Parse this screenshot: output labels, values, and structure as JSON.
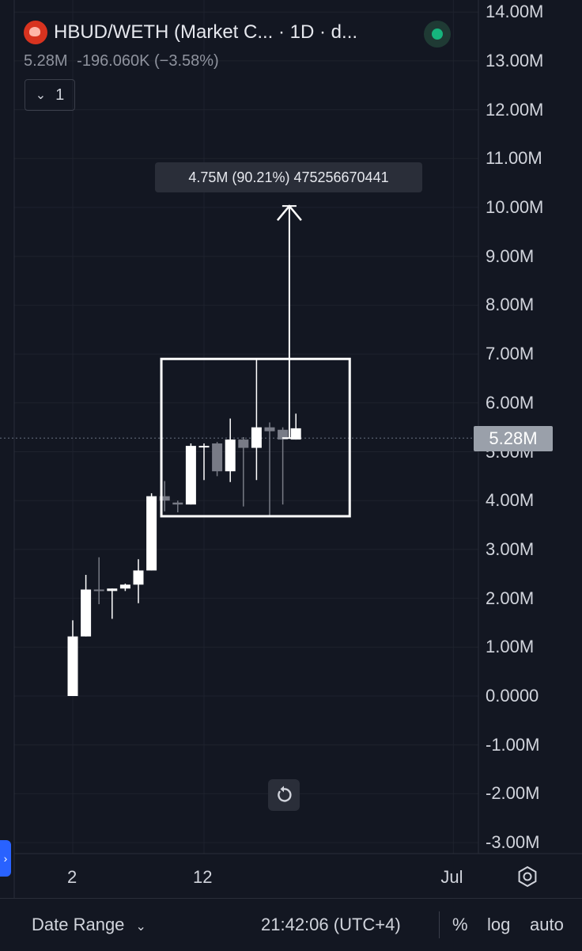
{
  "header": {
    "title": "HBUD/WETH (Market C...  · 1D · d...",
    "value": "5.28M",
    "change": "-196.060K (−3.58%)",
    "indicator_count": "1"
  },
  "measure_tooltip": "4.75M (90.21%) 475256670441",
  "last_price_label": "5.28M",
  "colors": {
    "background": "#131722",
    "candle_up": "#ffffff",
    "candle_down": "#787b86",
    "live_dot": "#16b47d",
    "side_tab": "#2962ff"
  },
  "chart_data": {
    "type": "candlestick",
    "interval": "1D",
    "y_axis": {
      "min": -3000000,
      "max": 14000000,
      "ticks": [
        14000000,
        13000000,
        12000000,
        11000000,
        10000000,
        9000000,
        8000000,
        7000000,
        6000000,
        5000000,
        4000000,
        3000000,
        2000000,
        1000000,
        0,
        -1000000,
        -2000000,
        -3000000
      ],
      "tick_labels": [
        "14.00M",
        "13.00M",
        "12.00M",
        "11.00M",
        "10.00M",
        "9.00M",
        "8.00M",
        "7.00M",
        "6.00M",
        "5.00M",
        "4.00M",
        "3.00M",
        "2.00M",
        "1.00M",
        "0.0000",
        "-1.00M",
        "-2.00M",
        "-3.00M"
      ]
    },
    "x_axis": {
      "tick_labels": [
        "2",
        "12",
        "Jul"
      ],
      "tick_days": [
        2,
        12,
        31
      ]
    },
    "candles": [
      {
        "day": 2,
        "open": 0,
        "high": 1550000,
        "low": 0,
        "close": 1220000
      },
      {
        "day": 3,
        "open": 1220000,
        "high": 2480000,
        "low": 1220000,
        "close": 2180000
      },
      {
        "day": 4,
        "open": 2180000,
        "high": 2840000,
        "low": 1880000,
        "close": 2150000
      },
      {
        "day": 5,
        "open": 2150000,
        "high": 2200000,
        "low": 1580000,
        "close": 2200000
      },
      {
        "day": 6,
        "open": 2200000,
        "high": 2300000,
        "low": 2150000,
        "close": 2280000
      },
      {
        "day": 7,
        "open": 2280000,
        "high": 2800000,
        "low": 1900000,
        "close": 2570000
      },
      {
        "day": 8,
        "open": 2570000,
        "high": 4150000,
        "low": 2570000,
        "close": 4090000
      },
      {
        "day": 9,
        "open": 4090000,
        "high": 4400000,
        "low": 3780000,
        "close": 4000000
      },
      {
        "day": 10,
        "open": 3960000,
        "high": 4000000,
        "low": 3760000,
        "close": 3920000
      },
      {
        "day": 11,
        "open": 3920000,
        "high": 5170000,
        "low": 3920000,
        "close": 5120000
      },
      {
        "day": 12,
        "open": 5120000,
        "high": 5170000,
        "low": 4420000,
        "close": 5120000
      },
      {
        "day": 13,
        "open": 5170000,
        "high": 5200000,
        "low": 4500000,
        "close": 4600000
      },
      {
        "day": 14,
        "open": 4600000,
        "high": 5680000,
        "low": 4380000,
        "close": 5250000
      },
      {
        "day": 15,
        "open": 5250000,
        "high": 5300000,
        "low": 3880000,
        "close": 5080000
      },
      {
        "day": 16,
        "open": 5080000,
        "high": 6880000,
        "low": 4420000,
        "close": 5500000
      },
      {
        "day": 17,
        "open": 5500000,
        "high": 5600000,
        "low": 3680000,
        "close": 5420000
      },
      {
        "day": 18,
        "open": 5450000,
        "high": 5500000,
        "low": 3920000,
        "close": 5250000
      },
      {
        "day": 19,
        "open": 5250000,
        "high": 5780000,
        "low": 5250000,
        "close": 5480000
      }
    ],
    "last_price": 5280000,
    "annotation_box": {
      "day_start": 8.75,
      "day_end": 23.1,
      "price_top": 6900000,
      "price_bottom": 3680000
    },
    "measure_arrow": {
      "day": 18.5,
      "from": 5280000,
      "to": 10030000
    }
  },
  "reset_icon": "reset-icon",
  "settings_icon": "gear-icon",
  "footer": {
    "date_range": "Date Range",
    "time": "21:42:06 (UTC+4)",
    "percent": "%",
    "log": "log",
    "auto": "auto"
  }
}
